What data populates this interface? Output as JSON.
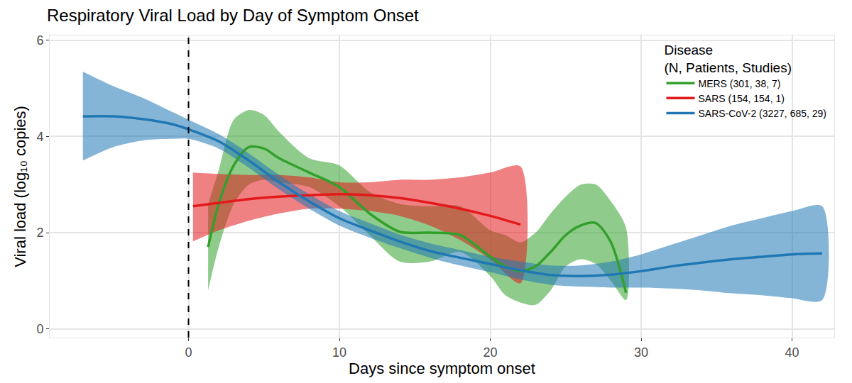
{
  "chart_data": {
    "type": "line",
    "title": "Respiratory Viral Load by Day of Symptom Onset",
    "x_label": "Days since symptom onset",
    "y_label": "Viral load (log₁₀ copies)",
    "legend_title": "Disease\n(N, Patients, Studies)",
    "legend": "top right",
    "grid": true,
    "xlim": [
      -9.2,
      42.8
    ],
    "ylim": [
      -0.18,
      6.1
    ],
    "xticks": [
      0,
      10,
      20,
      30,
      40
    ],
    "yticks": [
      0,
      2,
      4,
      6
    ],
    "vline": {
      "x": 0,
      "line_style": "dashed"
    },
    "series": [
      {
        "name": "MERS (301, 38, 7)",
        "color": "#33a02c",
        "x": [
          1.3,
          2,
          3,
          4,
          5,
          6,
          8,
          10,
          12,
          14,
          16,
          18,
          20,
          21,
          22,
          23,
          24,
          25,
          26,
          27,
          28,
          29
        ],
        "values": [
          1.7,
          2.6,
          3.4,
          3.78,
          3.75,
          3.55,
          3.25,
          2.95,
          2.4,
          2.02,
          2.0,
          1.95,
          1.5,
          1.3,
          1.2,
          1.3,
          1.6,
          1.95,
          2.15,
          2.2,
          1.8,
          0.75
        ],
        "lower": [
          0.8,
          1.7,
          2.6,
          3.0,
          3.1,
          3.05,
          2.95,
          2.55,
          1.95,
          1.4,
          1.4,
          1.6,
          1.1,
          0.7,
          0.55,
          0.5,
          0.8,
          1.3,
          1.45,
          1.35,
          1.0,
          0.6
        ],
        "upper": [
          2.6,
          3.3,
          4.35,
          4.55,
          4.45,
          4.1,
          3.55,
          3.4,
          2.85,
          2.6,
          2.55,
          2.55,
          2.05,
          1.95,
          1.8,
          2.0,
          2.4,
          2.75,
          3.0,
          3.0,
          2.65,
          2.1
        ]
      },
      {
        "name": "SARS (154, 154, 1)",
        "color": "#e31a1c",
        "x": [
          0.3,
          2,
          4,
          6,
          8,
          10,
          12,
          14,
          16,
          18,
          20,
          22
        ],
        "values": [
          2.55,
          2.62,
          2.7,
          2.75,
          2.78,
          2.8,
          2.78,
          2.72,
          2.62,
          2.5,
          2.35,
          2.17
        ],
        "lower": [
          1.82,
          2.05,
          2.25,
          2.4,
          2.5,
          2.5,
          2.45,
          2.35,
          2.15,
          1.85,
          1.45,
          0.95
        ],
        "upper": [
          3.25,
          3.22,
          3.2,
          3.2,
          3.15,
          3.05,
          3.05,
          3.1,
          3.1,
          3.15,
          3.25,
          3.38
        ]
      },
      {
        "name": "SARS-CoV-2 (3227, 685, 29)",
        "color": "#1f78b4",
        "x": [
          -7,
          -5,
          -3,
          -1,
          0,
          2,
          4,
          6,
          8,
          10,
          12,
          14,
          16,
          18,
          20,
          22,
          24,
          26,
          28,
          30,
          32,
          34,
          36,
          38,
          40,
          42
        ],
        "values": [
          4.42,
          4.42,
          4.36,
          4.25,
          4.15,
          3.9,
          3.5,
          3.05,
          2.65,
          2.3,
          2.05,
          1.82,
          1.62,
          1.48,
          1.35,
          1.22,
          1.12,
          1.1,
          1.13,
          1.2,
          1.3,
          1.38,
          1.45,
          1.5,
          1.55,
          1.57
        ],
        "lower": [
          3.5,
          3.78,
          3.92,
          3.95,
          3.95,
          3.75,
          3.35,
          2.9,
          2.5,
          2.15,
          1.9,
          1.68,
          1.48,
          1.32,
          1.18,
          1.03,
          0.92,
          0.88,
          0.86,
          0.86,
          0.84,
          0.8,
          0.74,
          0.7,
          0.64,
          0.6
        ],
        "upper": [
          5.35,
          5.05,
          4.8,
          4.5,
          4.35,
          4.05,
          3.65,
          3.2,
          2.8,
          2.45,
          2.2,
          1.96,
          1.78,
          1.64,
          1.5,
          1.4,
          1.32,
          1.32,
          1.4,
          1.55,
          1.75,
          1.95,
          2.15,
          2.3,
          2.45,
          2.55
        ]
      }
    ]
  }
}
